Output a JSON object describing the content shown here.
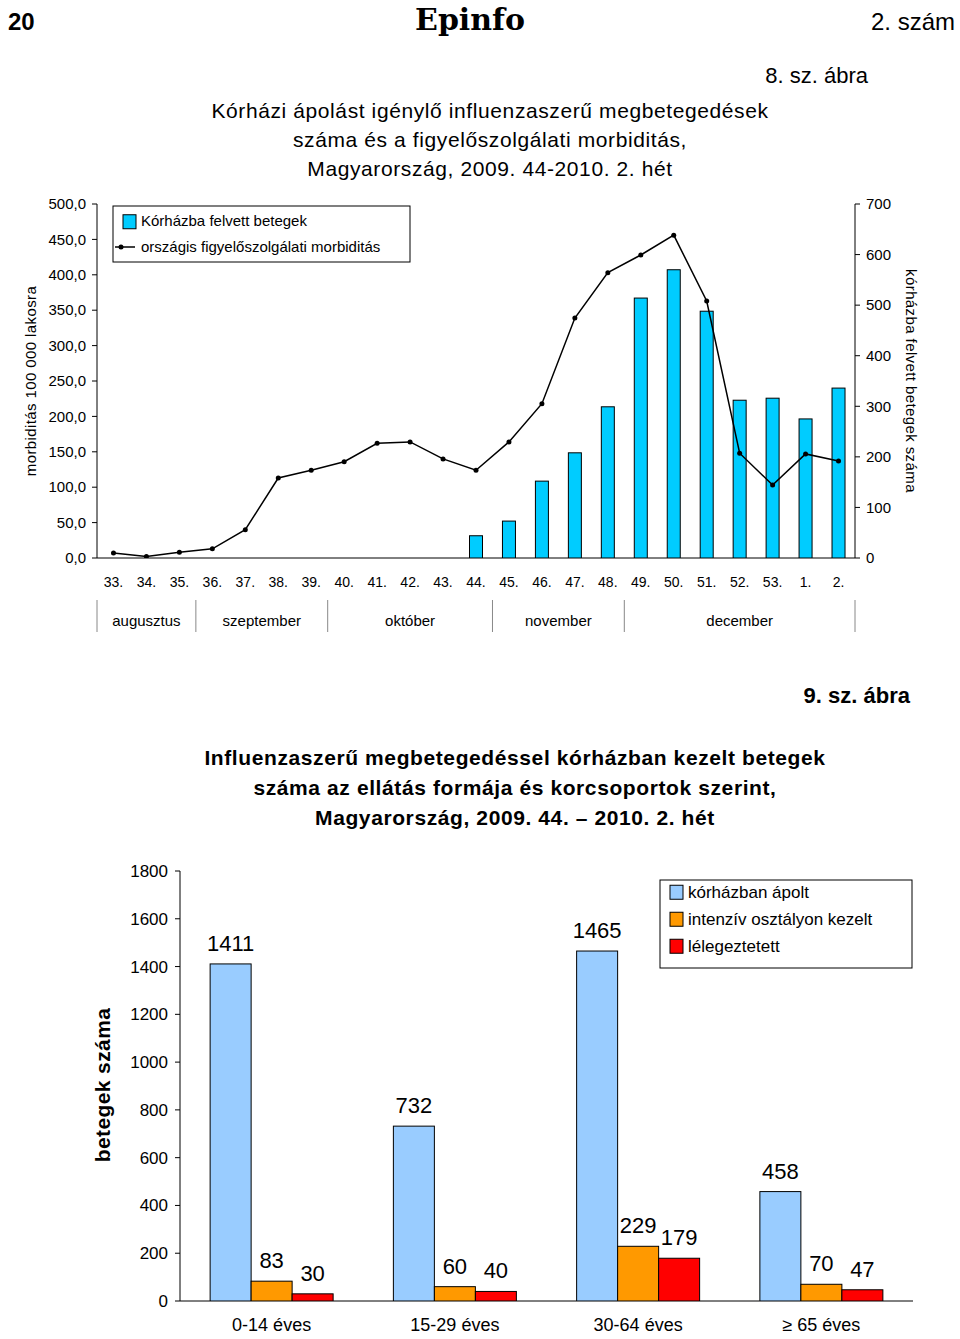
{
  "page": {
    "number": "20",
    "header": "Epinfo",
    "issue": "2. szám"
  },
  "chart_data": [
    {
      "type": "bar",
      "figure_label": "8. sz. ábra",
      "title": "Kórházi ápolást igénylő influenzaszerű megbetegedések\nszáma és a figyelőszolgálati morbiditás,\nMagyarország, 2009. 44-2010. 2. hét",
      "y_label": "morbiditás 100 000 lakosra",
      "y2_label": "kórházba felvett betegek száma",
      "categories": [
        "33.",
        "34.",
        "35.",
        "36.",
        "37.",
        "38.",
        "39.",
        "40.",
        "41.",
        "42.",
        "43.",
        "44.",
        "45.",
        "46.",
        "47.",
        "48.",
        "49.",
        "50.",
        "51.",
        "52.",
        "53.",
        "1.",
        "2."
      ],
      "x_groups": [
        {
          "label": "augusztus",
          "from": "33.",
          "to": "35."
        },
        {
          "label": "szeptember",
          "from": "36.",
          "to": "39."
        },
        {
          "label": "október",
          "from": "40.",
          "to": "44."
        },
        {
          "label": "november",
          "from": "45.",
          "to": "48."
        },
        {
          "label": "december",
          "from": "49.",
          "to": "2."
        }
      ],
      "series": [
        {
          "name": "Kórházba felvett betegek",
          "type": "bar",
          "axis": "y2",
          "color": "#00ccff",
          "values": [
            null,
            null,
            null,
            null,
            null,
            null,
            null,
            null,
            null,
            null,
            null,
            44,
            73,
            152,
            208,
            299,
            514,
            570,
            488,
            312,
            316,
            275,
            336
          ]
        },
        {
          "name": "országis figyelőszolgálati morbiditás",
          "type": "line",
          "color": "#000000",
          "marker": "circle",
          "values": [
            7,
            2,
            8,
            13,
            40,
            113,
            124,
            136,
            162,
            164,
            140,
            124,
            164,
            218,
            339,
            403,
            428,
            456,
            363,
            148,
            103,
            147,
            137
          ]
        }
      ],
      "ylim": [
        0,
        500
      ],
      "yticks": [
        {
          "value": 0,
          "label": "0,0"
        },
        {
          "value": 50,
          "label": "50,0"
        },
        {
          "value": 100,
          "label": "100,0"
        },
        {
          "value": 150,
          "label": "150,0"
        },
        {
          "value": 200,
          "label": "200,0"
        },
        {
          "value": 250,
          "label": "250,0"
        },
        {
          "value": 300,
          "label": "300,0"
        },
        {
          "value": 350,
          "label": "350,0"
        },
        {
          "value": 400,
          "label": "400,0"
        },
        {
          "value": 450,
          "label": "450,0"
        },
        {
          "value": 500,
          "label": "500,0"
        }
      ],
      "y2lim": [
        0,
        700
      ],
      "y2ticks": [
        0,
        100,
        200,
        300,
        400,
        500,
        600,
        700
      ],
      "legend": "upper left",
      "grid": false
    },
    {
      "type": "bar",
      "figure_label": "9. sz. ábra",
      "title": "Influenzaszerű megbetegedéssel kórházban kezelt betegek\nszáma az ellátás formája és korcsoportok szerint,\nMagyarország, 2009. 44. – 2010. 2. hét",
      "y_label": "betegek száma",
      "categories": [
        "0-14 éves",
        "15-29 éves",
        "30-64 éves",
        "≥ 65 éves"
      ],
      "series": [
        {
          "name": "kórházban ápolt",
          "color": "#99ccff",
          "values": [
            1411,
            732,
            1465,
            458
          ]
        },
        {
          "name": "intenzív osztályon kezelt",
          "color": "#ff9900",
          "values": [
            83,
            60,
            229,
            70
          ]
        },
        {
          "name": "lélegeztetett",
          "color": "#ff0000",
          "values": [
            30,
            40,
            179,
            47
          ]
        }
      ],
      "ylim": [
        0,
        1800
      ],
      "yticks": [
        0,
        200,
        400,
        600,
        800,
        1000,
        1200,
        1400,
        1600,
        1800
      ],
      "legend": "upper right",
      "data_labels": true,
      "grid": false
    }
  ]
}
